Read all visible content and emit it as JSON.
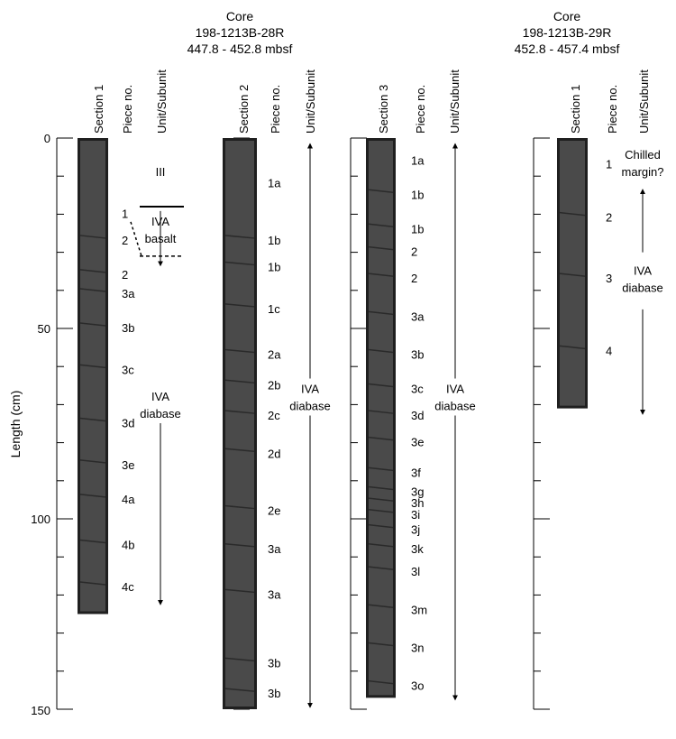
{
  "header_core1": {
    "line1": "Core",
    "line2": "198-1213B-28R",
    "line3": "447.8 - 452.8 mbsf"
  },
  "header_core2": {
    "line1": "Core",
    "line2": "198-1213B-29R",
    "line3": "452.8 - 457.4 mbsf"
  },
  "axis": {
    "label": "Length (cm)",
    "ticks": [
      0,
      50,
      100,
      150
    ],
    "range_cm": [
      0,
      150
    ],
    "minor_step_cm": 10
  },
  "column_headers": {
    "section_1": "Section 1",
    "section_2": "Section 2",
    "section_3": "Section 3",
    "piece_no": "Piece no.",
    "unit_subunit": "Unit/Subunit"
  },
  "columns": [
    {
      "id": "core28-sec1",
      "core_length_cm": 125,
      "pieces": [
        {
          "label": "1",
          "cm": 20
        },
        {
          "label": "2",
          "cm": 27
        },
        {
          "label": "2",
          "cm": 36
        },
        {
          "label": "3a",
          "cm": 41
        },
        {
          "label": "3b",
          "cm": 50
        },
        {
          "label": "3c",
          "cm": 61
        },
        {
          "label": "3d",
          "cm": 75
        },
        {
          "label": "3e",
          "cm": 86
        },
        {
          "label": "4a",
          "cm": 95
        },
        {
          "label": "4b",
          "cm": 107
        },
        {
          "label": "4c",
          "cm": 118
        }
      ],
      "units": [
        {
          "label": "III",
          "cm": 9
        },
        {
          "label": "IVA",
          "cm": 22
        },
        {
          "label": "basalt",
          "cm": 26.5
        },
        {
          "label": "IVA",
          "cm": 68
        },
        {
          "label": "diabase",
          "cm": 72.5
        }
      ],
      "unit_boundaries": [
        {
          "cm": 18,
          "style": "solid"
        },
        {
          "cm": 31,
          "style": "dashed"
        }
      ],
      "arrow_range_cm": [
        33,
        122
      ]
    },
    {
      "id": "core28-sec2",
      "core_length_cm": 150,
      "pieces": [
        {
          "label": "1a",
          "cm": 12
        },
        {
          "label": "1b",
          "cm": 27
        },
        {
          "label": "1b",
          "cm": 34
        },
        {
          "label": "1c",
          "cm": 45
        },
        {
          "label": "2a",
          "cm": 57
        },
        {
          "label": "2b",
          "cm": 65
        },
        {
          "label": "2c",
          "cm": 73
        },
        {
          "label": "2d",
          "cm": 83
        },
        {
          "label": "2e",
          "cm": 98
        },
        {
          "label": "3a",
          "cm": 108
        },
        {
          "label": "3a",
          "cm": 120
        },
        {
          "label": "3b",
          "cm": 138
        },
        {
          "label": "3b",
          "cm": 146
        }
      ],
      "units": [
        {
          "label": "IVA",
          "cm": 66
        },
        {
          "label": "diabase",
          "cm": 70.5
        }
      ],
      "arrow_range_cm": [
        2,
        149
      ]
    },
    {
      "id": "core28-sec3",
      "core_length_cm": 147,
      "pieces": [
        {
          "label": "1a",
          "cm": 6
        },
        {
          "label": "1b",
          "cm": 15
        },
        {
          "label": "1b",
          "cm": 24
        },
        {
          "label": "2",
          "cm": 30
        },
        {
          "label": "2",
          "cm": 37
        },
        {
          "label": "3a",
          "cm": 47
        },
        {
          "label": "3b",
          "cm": 57
        },
        {
          "label": "3c",
          "cm": 66
        },
        {
          "label": "3d",
          "cm": 73
        },
        {
          "label": "3e",
          "cm": 80
        },
        {
          "label": "3f",
          "cm": 88
        },
        {
          "label": "3g",
          "cm": 93
        },
        {
          "label": "3h",
          "cm": 96
        },
        {
          "label": "3i",
          "cm": 99
        },
        {
          "label": "3j",
          "cm": 103
        },
        {
          "label": "3k",
          "cm": 108
        },
        {
          "label": "3l",
          "cm": 114
        },
        {
          "label": "3m",
          "cm": 124
        },
        {
          "label": "3n",
          "cm": 134
        },
        {
          "label": "3o",
          "cm": 144
        }
      ],
      "units": [
        {
          "label": "IVA",
          "cm": 66
        },
        {
          "label": "diabase",
          "cm": 70.5
        }
      ],
      "arrow_range_cm": [
        2,
        147
      ]
    },
    {
      "id": "core29-sec1",
      "core_length_cm": 71,
      "pieces": [
        {
          "label": "1",
          "cm": 7
        },
        {
          "label": "2",
          "cm": 21
        },
        {
          "label": "3",
          "cm": 37
        },
        {
          "label": "4",
          "cm": 56
        }
      ],
      "units": [
        {
          "label": "Chilled",
          "cm": 4.5
        },
        {
          "label": "margin?",
          "cm": 9
        },
        {
          "label": "IVA",
          "cm": 35
        },
        {
          "label": "diabase",
          "cm": 39.5
        }
      ],
      "arrow_range_cm": [
        14,
        72
      ]
    }
  ]
}
